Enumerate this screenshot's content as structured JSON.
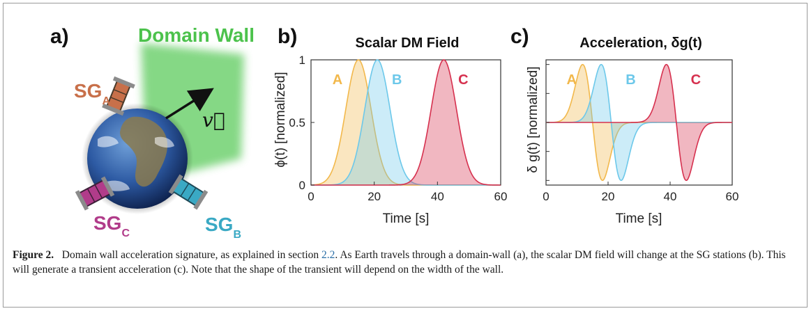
{
  "panel_a": {
    "letter": "a)",
    "wall_label": "Domain Wall",
    "velocity_label": "v⃗",
    "stations": [
      {
        "main": "SG",
        "sub": "A",
        "color": "#c8704a"
      },
      {
        "main": "SG",
        "sub": "C",
        "color": "#b13c8a"
      },
      {
        "main": "SG",
        "sub": "B",
        "color": "#3aa9c4"
      }
    ],
    "wall_color": "#7fd67f"
  },
  "colors": {
    "A": "#f2b84b",
    "B": "#6cc8ea",
    "C": "#d6304e"
  },
  "chart_data": [
    {
      "type": "area",
      "letter": "b)",
      "title": "Scalar DM Field",
      "xlabel": "Time [s]",
      "ylabel": "ϕ(t) [normalized]",
      "xlim": [
        0,
        60
      ],
      "ylim": [
        0,
        1
      ],
      "xticks": [
        "0",
        "20",
        "40",
        "60"
      ],
      "yticks": [
        "0",
        "0.5",
        "1"
      ],
      "series": [
        {
          "name": "A",
          "shape": "gaussian",
          "center": 15,
          "width": 4,
          "peak": 1
        },
        {
          "name": "B",
          "shape": "gaussian",
          "center": 21,
          "width": 4,
          "peak": 1
        },
        {
          "name": "C",
          "shape": "gaussian",
          "center": 42,
          "width": 4,
          "peak": 1
        }
      ]
    },
    {
      "type": "area",
      "letter": "c)",
      "title": "Acceleration, δg(t)",
      "xlabel": "Time [s]",
      "ylabel": "δ g(t) [normalized]",
      "xlim": [
        0,
        60
      ],
      "xticks": [
        "0",
        "20",
        "40",
        "60"
      ],
      "series": [
        {
          "name": "A",
          "shape": "gaussian-derivative",
          "center": 15,
          "width": 3.2
        },
        {
          "name": "B",
          "shape": "gaussian-derivative",
          "center": 21,
          "width": 3.2
        },
        {
          "name": "C",
          "shape": "gaussian-derivative",
          "center": 42,
          "width": 3.2
        }
      ]
    }
  ],
  "caption": {
    "label": "Figure 2.",
    "text_1": "Domain wall acceleration signature, as explained in section ",
    "ref": "2.2",
    "text_2": ". As Earth travels through a domain-wall (a), the scalar DM field will change at the SG stations (b). This will generate a transient acceleration (c). Note that the shape of the transient will depend on the width of the wall."
  }
}
